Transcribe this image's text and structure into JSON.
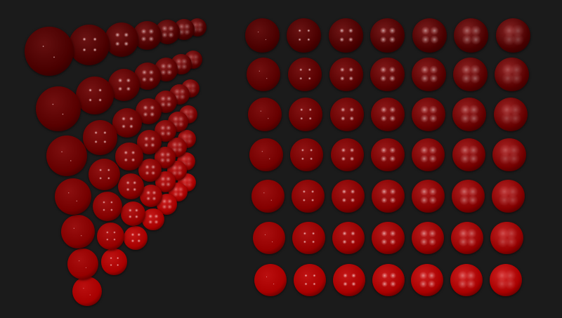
{
  "scene": {
    "background": "#1b1b1b",
    "grid_rows": 7,
    "grid_columns": 7,
    "row_base_colors": [
      "#4a0000",
      "#580000",
      "#660000",
      "#750000",
      "#840000",
      "#950000",
      "#a80000"
    ],
    "highlight_color": "#ffffff",
    "groups": [
      "perspective-grid",
      "front-grid"
    ]
  }
}
